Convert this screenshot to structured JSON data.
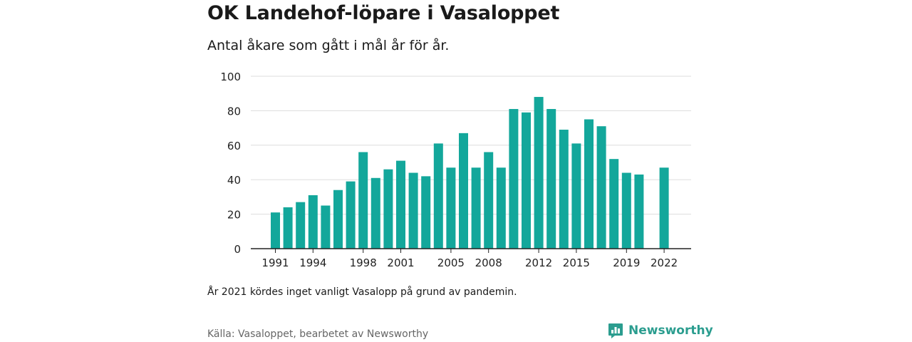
{
  "title": "OK Landehof-löpare i Vasaloppet",
  "subtitle": "Antal åkare som gått i mål år för år.",
  "note": "År 2021 kördes inget vanligt Vasalopp på grund av pandemin.",
  "source": "Källa: Vasaloppet, bearbetet av Newsworthy",
  "brand": {
    "name": "Newsworthy",
    "icon": "newsworthy-logo-icon"
  },
  "colors": {
    "bar": "#13a79b",
    "grid": "#dddddd",
    "axis": "#222222",
    "brand": "#2b9d8f"
  },
  "chart_data": {
    "type": "bar",
    "title": "",
    "xlabel": "",
    "ylabel": "",
    "ylim": [
      0,
      100
    ],
    "yticks": [
      0,
      20,
      40,
      60,
      80,
      100
    ],
    "grid": true,
    "legend": "none",
    "xtick_labels": [
      "1991",
      "1994",
      "1998",
      "2001",
      "2005",
      "2008",
      "2012",
      "2015",
      "2019",
      "2022"
    ],
    "categories": [
      "1991",
      "1992",
      "1993",
      "1994",
      "1995",
      "1996",
      "1997",
      "1998",
      "1999",
      "2000",
      "2001",
      "2002",
      "2003",
      "2004",
      "2005",
      "2006",
      "2007",
      "2008",
      "2009",
      "2010",
      "2011",
      "2012",
      "2013",
      "2014",
      "2015",
      "2016",
      "2017",
      "2018",
      "2019",
      "2020",
      "2021",
      "2022"
    ],
    "values": [
      21,
      24,
      27,
      31,
      25,
      34,
      39,
      56,
      41,
      46,
      51,
      44,
      42,
      61,
      47,
      67,
      47,
      56,
      47,
      81,
      79,
      88,
      81,
      69,
      61,
      75,
      71,
      52,
      44,
      43,
      null,
      47
    ]
  }
}
